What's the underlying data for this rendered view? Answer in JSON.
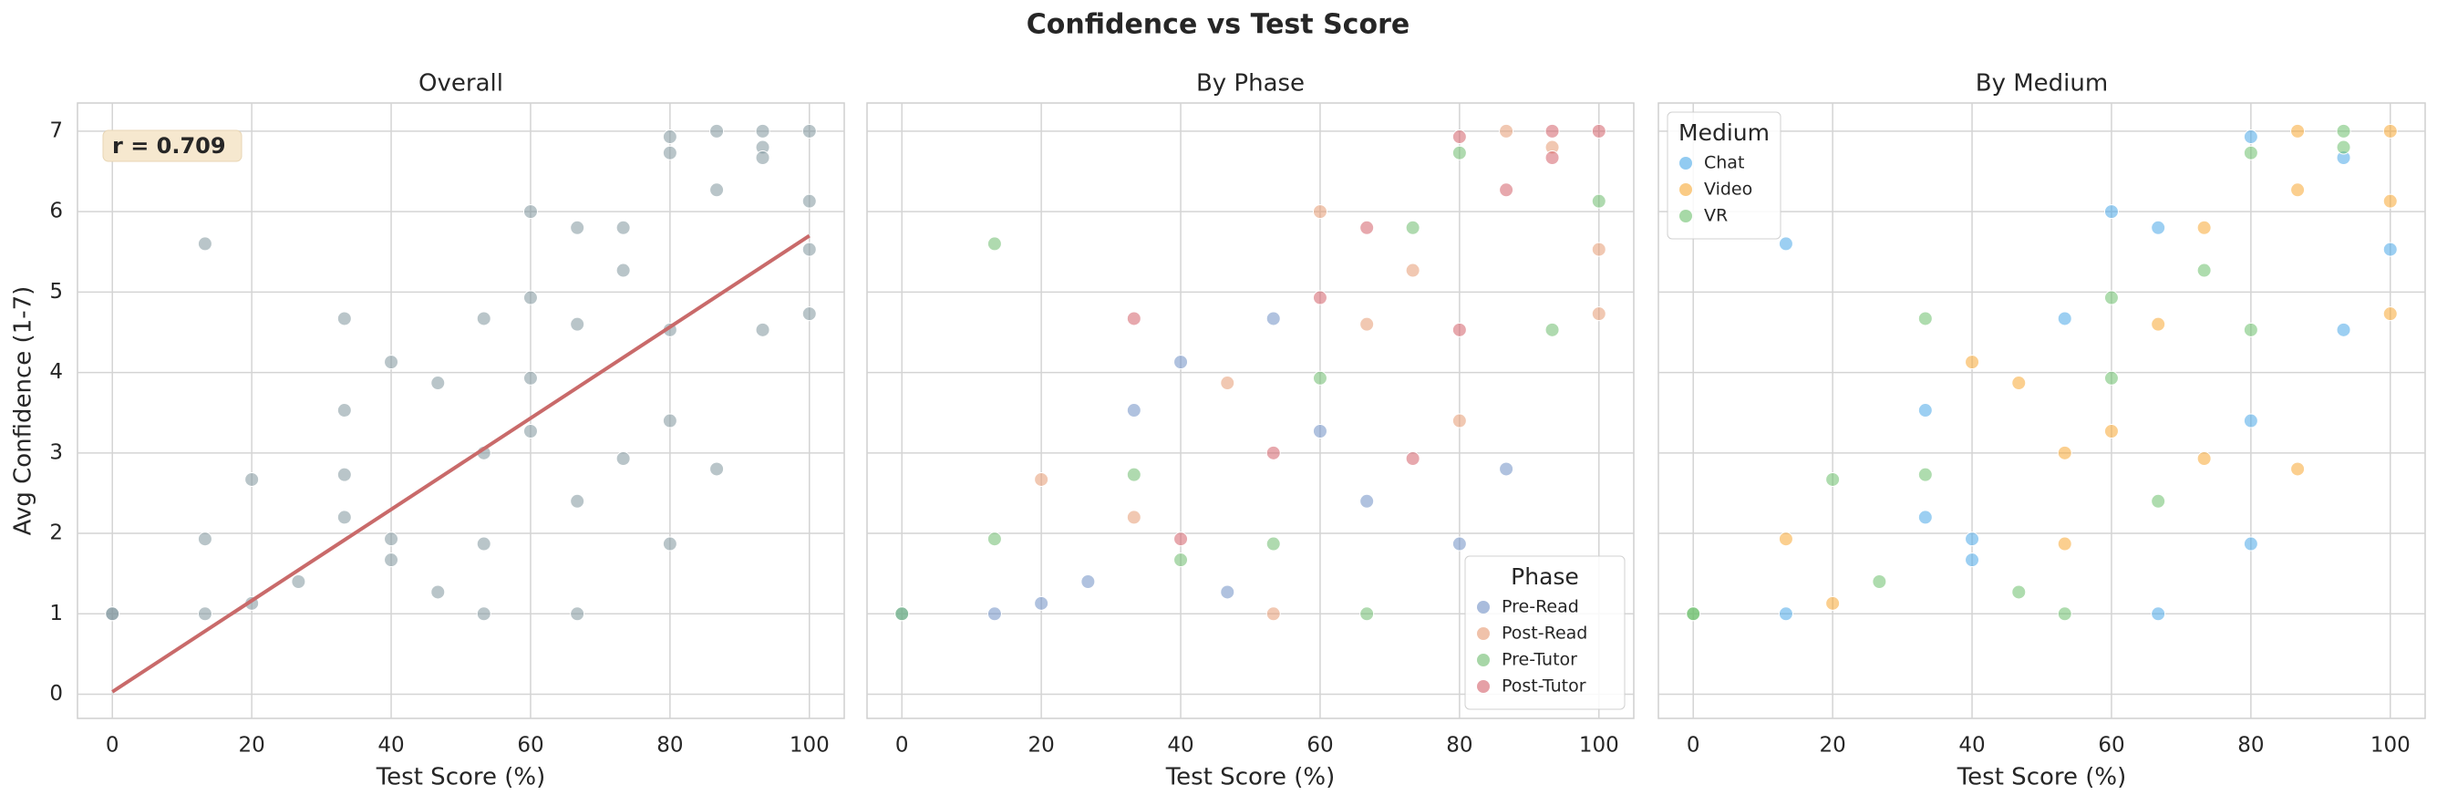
{
  "title": "Confidence vs Test Score",
  "chart_data": [
    {
      "type": "scatter",
      "title": "Overall",
      "xlabel": "Test Score (%)",
      "ylabel": "Avg Confidence (1-7)",
      "xlim": [
        -5,
        105
      ],
      "ylim": [
        -0.3,
        7.35
      ],
      "xticks": [
        0,
        20,
        40,
        60,
        80,
        100
      ],
      "yticks": [
        0,
        1,
        2,
        3,
        4,
        5,
        6,
        7
      ],
      "ytick_labels": true,
      "grid": true,
      "series": [
        {
          "color": "#7f959d",
          "x": [
            0,
            13.3,
            20,
            26.7,
            33.3,
            40,
            46.7,
            53.3,
            60,
            66.7,
            80,
            86.7,
            20,
            33.3,
            46.7,
            53.3,
            60,
            66.7,
            73.3,
            80,
            86.7,
            93.3,
            100,
            100,
            0,
            13.3,
            13.3,
            33.3,
            40,
            53.3,
            60,
            66.7,
            73.3,
            80,
            93.3,
            100,
            33.3,
            40,
            53.3,
            60,
            66.7,
            73.3,
            80,
            80,
            86.7,
            93.3,
            93.3,
            100
          ],
          "values": [
            1,
            1,
            1.13,
            1.4,
            3.53,
            4.13,
            1.27,
            4.67,
            3.27,
            2.4,
            1.87,
            2.8,
            2.67,
            2.2,
            3.87,
            1,
            6,
            4.6,
            5.27,
            3.4,
            7,
            6.8,
            5.53,
            4.73,
            1,
            5.6,
            1.93,
            2.73,
            1.67,
            1.87,
            3.93,
            1,
            5.8,
            6.73,
            4.53,
            6.13,
            4.67,
            1.93,
            3,
            4.93,
            5.8,
            2.93,
            4.53,
            6.93,
            6.27,
            7,
            6.67,
            7
          ]
        }
      ],
      "fit": {
        "color": "#c96a6a",
        "x": [
          0,
          100
        ],
        "values": [
          0.03,
          5.7
        ]
      },
      "annotation": "r = 0.709"
    },
    {
      "type": "scatter",
      "title": "By Phase",
      "xlabel": "Test Score (%)",
      "xlim": [
        -5,
        105
      ],
      "ylim": [
        -0.3,
        7.35
      ],
      "xticks": [
        0,
        20,
        40,
        60,
        80,
        100
      ],
      "yticks": [
        0,
        1,
        2,
        3,
        4,
        5,
        6,
        7
      ],
      "ytick_labels": false,
      "grid": true,
      "legend_title": "Phase",
      "legend": "lower right",
      "series": [
        {
          "name": "Pre-Read",
          "color": "#6f8fc4",
          "x": [
            0,
            13.3,
            20,
            26.7,
            33.3,
            40,
            46.7,
            53.3,
            60,
            66.7,
            80,
            86.7
          ],
          "values": [
            1,
            1,
            1.13,
            1.4,
            3.53,
            4.13,
            1.27,
            4.67,
            3.27,
            2.4,
            1.87,
            2.8
          ]
        },
        {
          "name": "Post-Read",
          "color": "#e69a72",
          "x": [
            20,
            33.3,
            46.7,
            53.3,
            60,
            66.7,
            73.3,
            80,
            86.7,
            93.3,
            100,
            100
          ],
          "values": [
            2.67,
            2.2,
            3.87,
            1,
            6,
            4.6,
            5.27,
            3.4,
            7,
            6.8,
            5.53,
            4.73
          ]
        },
        {
          "name": "Pre-Tutor",
          "color": "#6dbb6d",
          "x": [
            0,
            13.3,
            13.3,
            33.3,
            40,
            53.3,
            60,
            66.7,
            73.3,
            80,
            93.3,
            100
          ],
          "values": [
            1,
            5.6,
            1.93,
            2.73,
            1.67,
            1.87,
            3.93,
            1,
            5.8,
            6.73,
            4.53,
            6.13
          ]
        },
        {
          "name": "Post-Tutor",
          "color": "#d4606a",
          "x": [
            33.3,
            40,
            53.3,
            60,
            66.7,
            73.3,
            80,
            80,
            86.7,
            93.3,
            93.3,
            100
          ],
          "values": [
            4.67,
            1.93,
            3,
            4.93,
            5.8,
            2.93,
            4.53,
            6.93,
            6.27,
            7,
            6.67,
            7
          ]
        }
      ]
    },
    {
      "type": "scatter",
      "title": "By Medium",
      "xlabel": "Test Score (%)",
      "xlim": [
        -5,
        105
      ],
      "ylim": [
        -0.3,
        7.35
      ],
      "xticks": [
        0,
        20,
        40,
        60,
        80,
        100
      ],
      "yticks": [
        0,
        1,
        2,
        3,
        4,
        5,
        6,
        7
      ],
      "ytick_labels": false,
      "grid": true,
      "legend_title": "Medium",
      "legend": "upper left",
      "series": [
        {
          "name": "Chat",
          "color": "#4aa8e8",
          "x": [
            13.3,
            33.3,
            53.3,
            80,
            33.3,
            60,
            80,
            100,
            13.3,
            40,
            66.7,
            93.3,
            40,
            66.7,
            80,
            93.3
          ],
          "values": [
            1,
            3.53,
            4.67,
            1.87,
            2.2,
            6,
            3.4,
            5.53,
            5.6,
            1.67,
            1,
            4.53,
            1.93,
            5.8,
            6.93,
            6.67
          ]
        },
        {
          "name": "Video",
          "color": "#f7a833",
          "x": [
            20,
            40,
            60,
            86.7,
            46.7,
            66.7,
            86.7,
            100,
            13.3,
            53.3,
            73.3,
            100,
            53.3,
            73.3,
            86.7,
            100
          ],
          "values": [
            1.13,
            4.13,
            3.27,
            2.8,
            3.87,
            4.6,
            7,
            4.73,
            1.93,
            1.87,
            5.8,
            6.13,
            3,
            2.93,
            6.27,
            7
          ]
        },
        {
          "name": "VR",
          "color": "#6cbf6c",
          "x": [
            0,
            26.7,
            46.7,
            66.7,
            20,
            53.3,
            73.3,
            93.3,
            0,
            33.3,
            60,
            80,
            33.3,
            60,
            80,
            93.3
          ],
          "values": [
            1,
            1.4,
            1.27,
            2.4,
            2.67,
            1,
            5.27,
            6.8,
            1,
            2.73,
            3.93,
            6.73,
            4.67,
            4.93,
            4.53,
            7
          ]
        }
      ]
    }
  ]
}
